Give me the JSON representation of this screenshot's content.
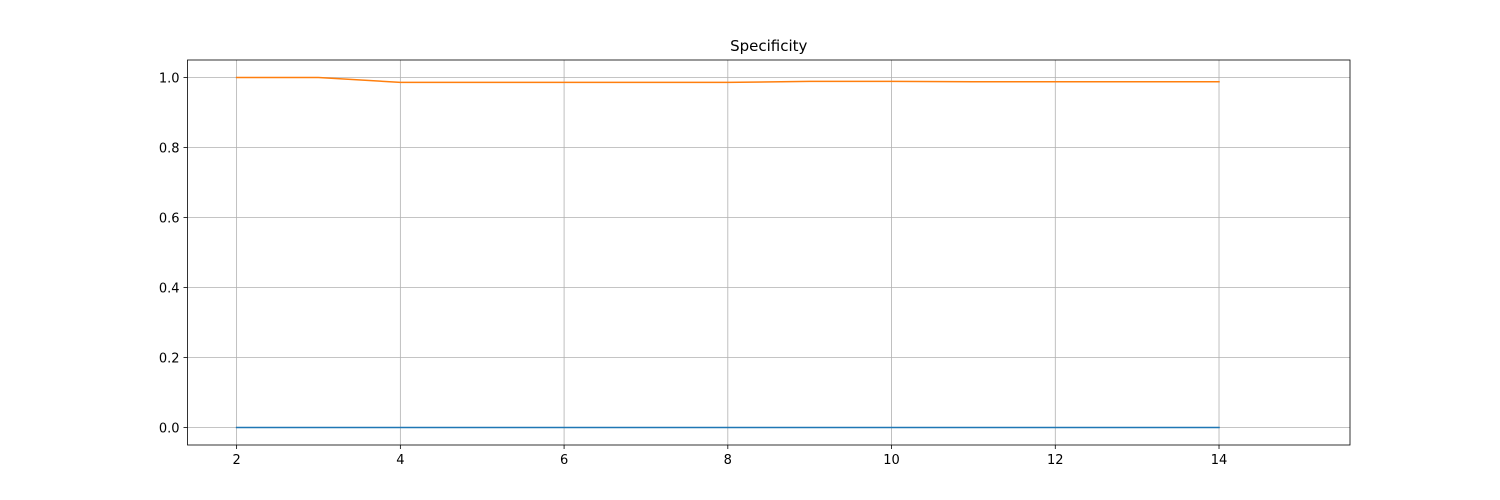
{
  "chart_data": {
    "type": "line",
    "title": "Specificity",
    "xlabel": "",
    "ylabel": "",
    "xlim": [
      1.4,
      15.6
    ],
    "ylim": [
      -0.05,
      1.05
    ],
    "grid": true,
    "xticks": [
      2,
      4,
      6,
      8,
      10,
      12,
      14
    ],
    "yticks": [
      0.0,
      0.2,
      0.4,
      0.6,
      0.8,
      1.0
    ],
    "x": [
      2,
      3,
      4,
      5,
      6,
      7,
      8,
      9,
      10,
      11,
      12,
      13,
      14
    ],
    "series": [
      {
        "color": "#1f77b4",
        "values": [
          0,
          0,
          0,
          0,
          0,
          0,
          0,
          0,
          0,
          0,
          0,
          0,
          0
        ]
      },
      {
        "color": "#ff7f0e",
        "values": [
          1.0,
          1.0,
          0.986,
          0.986,
          0.986,
          0.986,
          0.986,
          0.989,
          0.989,
          0.988,
          0.988,
          0.988,
          0.988
        ]
      }
    ]
  }
}
